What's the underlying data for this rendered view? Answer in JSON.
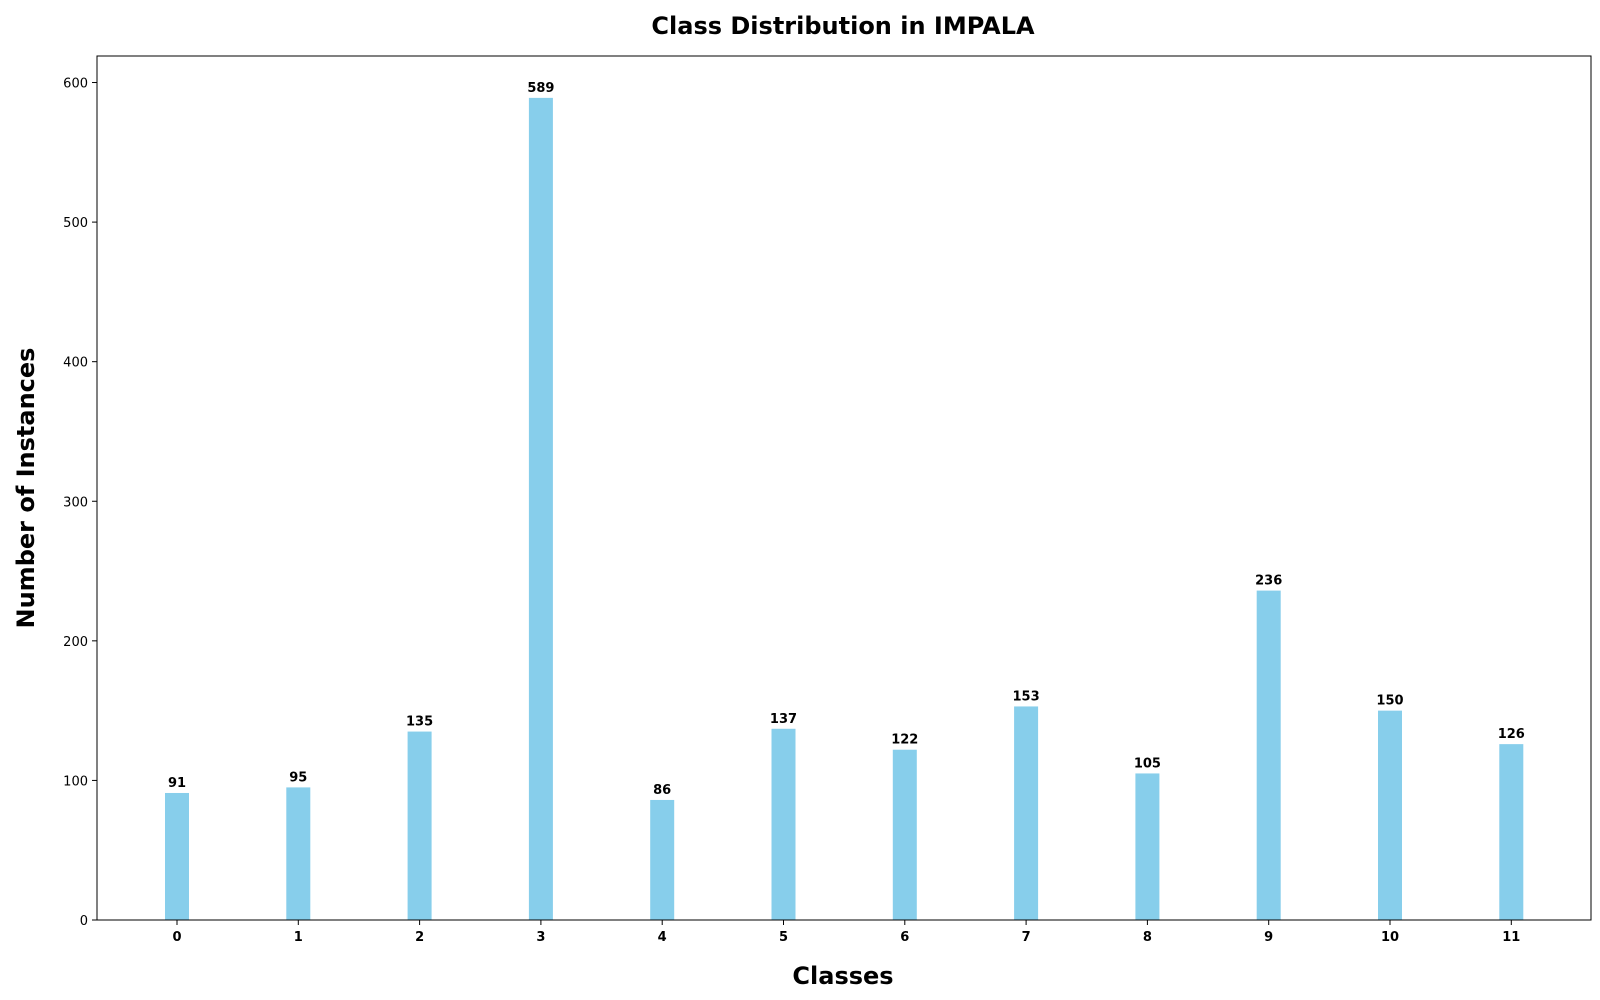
{
  "chart_data": {
    "type": "bar",
    "title": "Class Distribution in IMPALA",
    "xlabel": "Classes",
    "ylabel": "Number of Instances",
    "categories": [
      "0",
      "1",
      "2",
      "3",
      "4",
      "5",
      "6",
      "7",
      "8",
      "9",
      "10",
      "11"
    ],
    "values": [
      91,
      95,
      135,
      589,
      86,
      137,
      122,
      153,
      105,
      236,
      150,
      126
    ],
    "ylim": [
      0,
      619
    ],
    "yticks": [
      0,
      100,
      200,
      300,
      400,
      500,
      600
    ],
    "bar_color": "#87ceeb",
    "grid": false,
    "legend": "none"
  }
}
